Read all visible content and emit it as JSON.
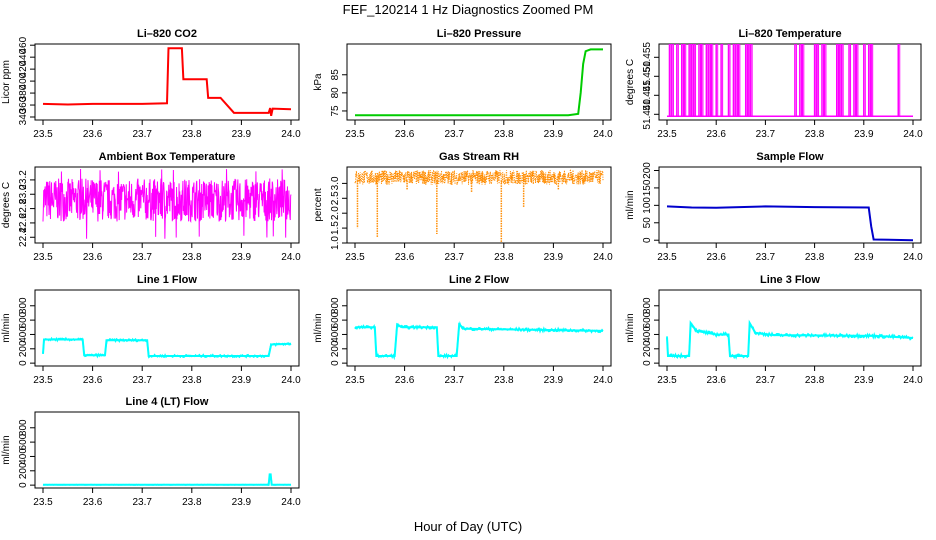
{
  "title": "FEF_120214  1 Hz Diagnostics Zoomed PM",
  "xlabel": "Hour of Day (UTC)",
  "chart_data": [
    {
      "type": "line",
      "title": "Li–820 CO2",
      "ylabel": "Licor ppm",
      "xlim": [
        23.5,
        24.0
      ],
      "ylim": [
        335,
        462
      ],
      "xticks": [
        "23.5",
        "23.6",
        "23.7",
        "23.8",
        "23.9",
        "24.0"
      ],
      "yticks": [
        "340",
        "360",
        "380",
        "400",
        "420",
        "440",
        "460"
      ],
      "series": [
        {
          "color": "#ff0000",
          "x": [
            23.5,
            23.55,
            23.6,
            23.7,
            23.75,
            23.753,
            23.78,
            23.783,
            23.83,
            23.833,
            23.855,
            23.858,
            23.885,
            23.888,
            23.955,
            23.958,
            23.96,
            23.963,
            24.0
          ],
          "y": [
            362,
            361,
            362,
            362,
            363,
            455,
            455,
            403,
            403,
            372,
            372,
            372,
            347,
            347,
            347,
            355,
            342,
            354,
            353
          ]
        }
      ]
    },
    {
      "type": "line",
      "title": "Li–820 Pressure",
      "ylabel": "kPa",
      "xlim": [
        23.5,
        24.0
      ],
      "ylim": [
        72.5,
        93.5
      ],
      "xticks": [
        "23.5",
        "23.6",
        "23.7",
        "23.8",
        "23.9",
        "24.0"
      ],
      "yticks": [
        "75",
        "80",
        "85"
      ],
      "series": [
        {
          "color": "#00cc00",
          "x": [
            23.5,
            23.6,
            23.7,
            23.8,
            23.9,
            23.93,
            23.95,
            23.955,
            23.96,
            23.965,
            23.975,
            24.0
          ],
          "y": [
            73.8,
            73.8,
            73.8,
            73.8,
            73.8,
            73.8,
            74.2,
            80,
            88,
            91.5,
            92,
            92
          ]
        }
      ]
    },
    {
      "type": "line",
      "title": "Li–820 Temperature",
      "ylabel": "degrees C",
      "xlim": [
        23.5,
        24.0
      ],
      "ylim": [
        51.4385,
        51.4585
      ],
      "xticks": [
        "23.5",
        "23.6",
        "23.7",
        "23.8",
        "23.9",
        "24.0"
      ],
      "yticks": [
        "51.440",
        "51.445",
        "51.450",
        "51.455"
      ],
      "series": [
        {
          "color": "#ff00ff",
          "base": 51.4395,
          "spike": 51.4585,
          "spike_x": [
            23.505,
            23.51,
            23.52,
            23.53,
            23.535,
            23.545,
            23.55,
            23.555,
            23.565,
            23.57,
            23.58,
            23.585,
            23.59,
            23.6,
            23.61,
            23.625,
            23.635,
            23.64,
            23.645,
            23.66,
            23.665,
            23.67,
            23.76,
            23.77,
            23.775,
            23.8,
            23.805,
            23.815,
            23.82,
            23.845,
            23.85,
            23.855,
            23.87,
            23.88,
            23.885,
            23.9,
            23.91,
            23.915,
            23.97
          ]
        }
      ]
    },
    {
      "type": "line",
      "title": "Ambient Box Temperature",
      "ylabel": "degrees C",
      "xlim": [
        23.5,
        24.0
      ],
      "ylim": [
        22.32,
        23.38
      ],
      "xticks": [
        "23.5",
        "23.6",
        "23.7",
        "23.8",
        "23.9",
        "24.0"
      ],
      "yticks": [
        "22.4",
        "22.6",
        "22.8",
        "23.0",
        "23.2"
      ],
      "series": [
        {
          "color": "#ff00ff",
          "center": 22.9,
          "band": [
            22.62,
            23.22
          ],
          "extremes": [
            22.4,
            23.33
          ]
        }
      ]
    },
    {
      "type": "line",
      "title": "Gas Stream RH",
      "ylabel": "percent",
      "xlim": [
        23.5,
        24.0
      ],
      "ylim": [
        1.0,
        3.55
      ],
      "xticks": [
        "23.5",
        "23.6",
        "23.7",
        "23.8",
        "23.9",
        "24.0"
      ],
      "yticks": [
        "1.0",
        "1.5",
        "2.0",
        "2.5",
        "3.0"
      ],
      "series": [
        {
          "color": "#ff8c00",
          "band": [
            2.95,
            3.45
          ],
          "dips": [
            {
              "x": 23.505,
              "y": 1.5
            },
            {
              "x": 23.545,
              "y": 1.2
            },
            {
              "x": 23.665,
              "y": 1.3
            },
            {
              "x": 23.795,
              "y": 1.02
            },
            {
              "x": 23.84,
              "y": 2.2
            },
            {
              "x": 23.605,
              "y": 2.8
            },
            {
              "x": 23.735,
              "y": 2.7
            },
            {
              "x": 23.91,
              "y": 2.8
            }
          ]
        }
      ]
    },
    {
      "type": "line",
      "title": "Sample Flow",
      "ylabel": "ml/min",
      "xlim": [
        23.5,
        24.0
      ],
      "ylim": [
        -8,
        210
      ],
      "xticks": [
        "23.5",
        "23.6",
        "23.7",
        "23.8",
        "23.9",
        "24.0"
      ],
      "yticks": [
        "0",
        "50",
        "100",
        "150",
        "200"
      ],
      "series": [
        {
          "color": "#0000cc",
          "x": [
            23.5,
            23.55,
            23.6,
            23.7,
            23.8,
            23.91,
            23.915,
            23.92,
            24.0
          ],
          "y": [
            97,
            94,
            93,
            97,
            95,
            94,
            40,
            2,
            0
          ]
        }
      ]
    },
    {
      "type": "line",
      "title": "Line 1 Flow",
      "ylabel": "ml/min",
      "xlim": [
        23.5,
        24.0
      ],
      "ylim": [
        -40,
        1020
      ],
      "xticks": [
        "23.5",
        "23.6",
        "23.7",
        "23.8",
        "23.9",
        "24.0"
      ],
      "yticks": [
        "0",
        "200",
        "400",
        "600",
        "800"
      ],
      "series": [
        {
          "color": "#00ffff",
          "noise": 18,
          "x": [
            23.5,
            23.502,
            23.58,
            23.583,
            23.625,
            23.628,
            23.71,
            23.713,
            23.955,
            23.96,
            24.0
          ],
          "y": [
            130,
            330,
            330,
            110,
            110,
            320,
            320,
            100,
            100,
            260,
            270
          ]
        }
      ]
    },
    {
      "type": "line",
      "title": "Line 2 Flow",
      "ylabel": "ml/min",
      "xlim": [
        23.5,
        24.0
      ],
      "ylim": [
        -40,
        1020
      ],
      "xticks": [
        "23.5",
        "23.6",
        "23.7",
        "23.8",
        "23.9",
        "24.0"
      ],
      "yticks": [
        "0",
        "200",
        "400",
        "600",
        "800"
      ],
      "series": [
        {
          "color": "#00ffff",
          "noise": 22,
          "x": [
            23.5,
            23.502,
            23.54,
            23.543,
            23.58,
            23.585,
            23.595,
            23.665,
            23.668,
            23.705,
            23.71,
            23.72,
            24.0
          ],
          "y": [
            480,
            500,
            500,
            100,
            100,
            540,
            500,
            500,
            100,
            100,
            540,
            480,
            450
          ]
        }
      ]
    },
    {
      "type": "line",
      "title": "Line 3 Flow",
      "ylabel": "ml/min",
      "xlim": [
        23.5,
        24.0
      ],
      "ylim": [
        -40,
        1020
      ],
      "xticks": [
        "23.5",
        "23.6",
        "23.7",
        "23.8",
        "23.9",
        "24.0"
      ],
      "yticks": [
        "0",
        "200",
        "400",
        "600",
        "800"
      ],
      "series": [
        {
          "color": "#00ffff",
          "noise": 25,
          "x": [
            23.5,
            23.502,
            23.545,
            23.548,
            23.56,
            23.6,
            23.625,
            23.628,
            23.665,
            23.668,
            23.68,
            23.72,
            23.92,
            23.98,
            24.0
          ],
          "y": [
            360,
            100,
            100,
            560,
            450,
            400,
            400,
            100,
            100,
            560,
            420,
            390,
            380,
            360,
            350
          ]
        }
      ]
    },
    {
      "type": "line",
      "title": "Line 4 (LT) Flow",
      "ylabel": "ml/min",
      "xlim": [
        23.5,
        24.0
      ],
      "ylim": [
        -40,
        1020
      ],
      "xticks": [
        "23.5",
        "23.6",
        "23.7",
        "23.8",
        "23.9",
        "24.0"
      ],
      "yticks": [
        "0",
        "200",
        "400",
        "600",
        "800"
      ],
      "series": [
        {
          "color": "#00ffff",
          "noise": 3,
          "x": [
            23.5,
            23.955,
            23.957,
            23.959,
            23.961,
            24.0
          ],
          "y": [
            5,
            5,
            150,
            150,
            5,
            5
          ]
        }
      ]
    }
  ]
}
